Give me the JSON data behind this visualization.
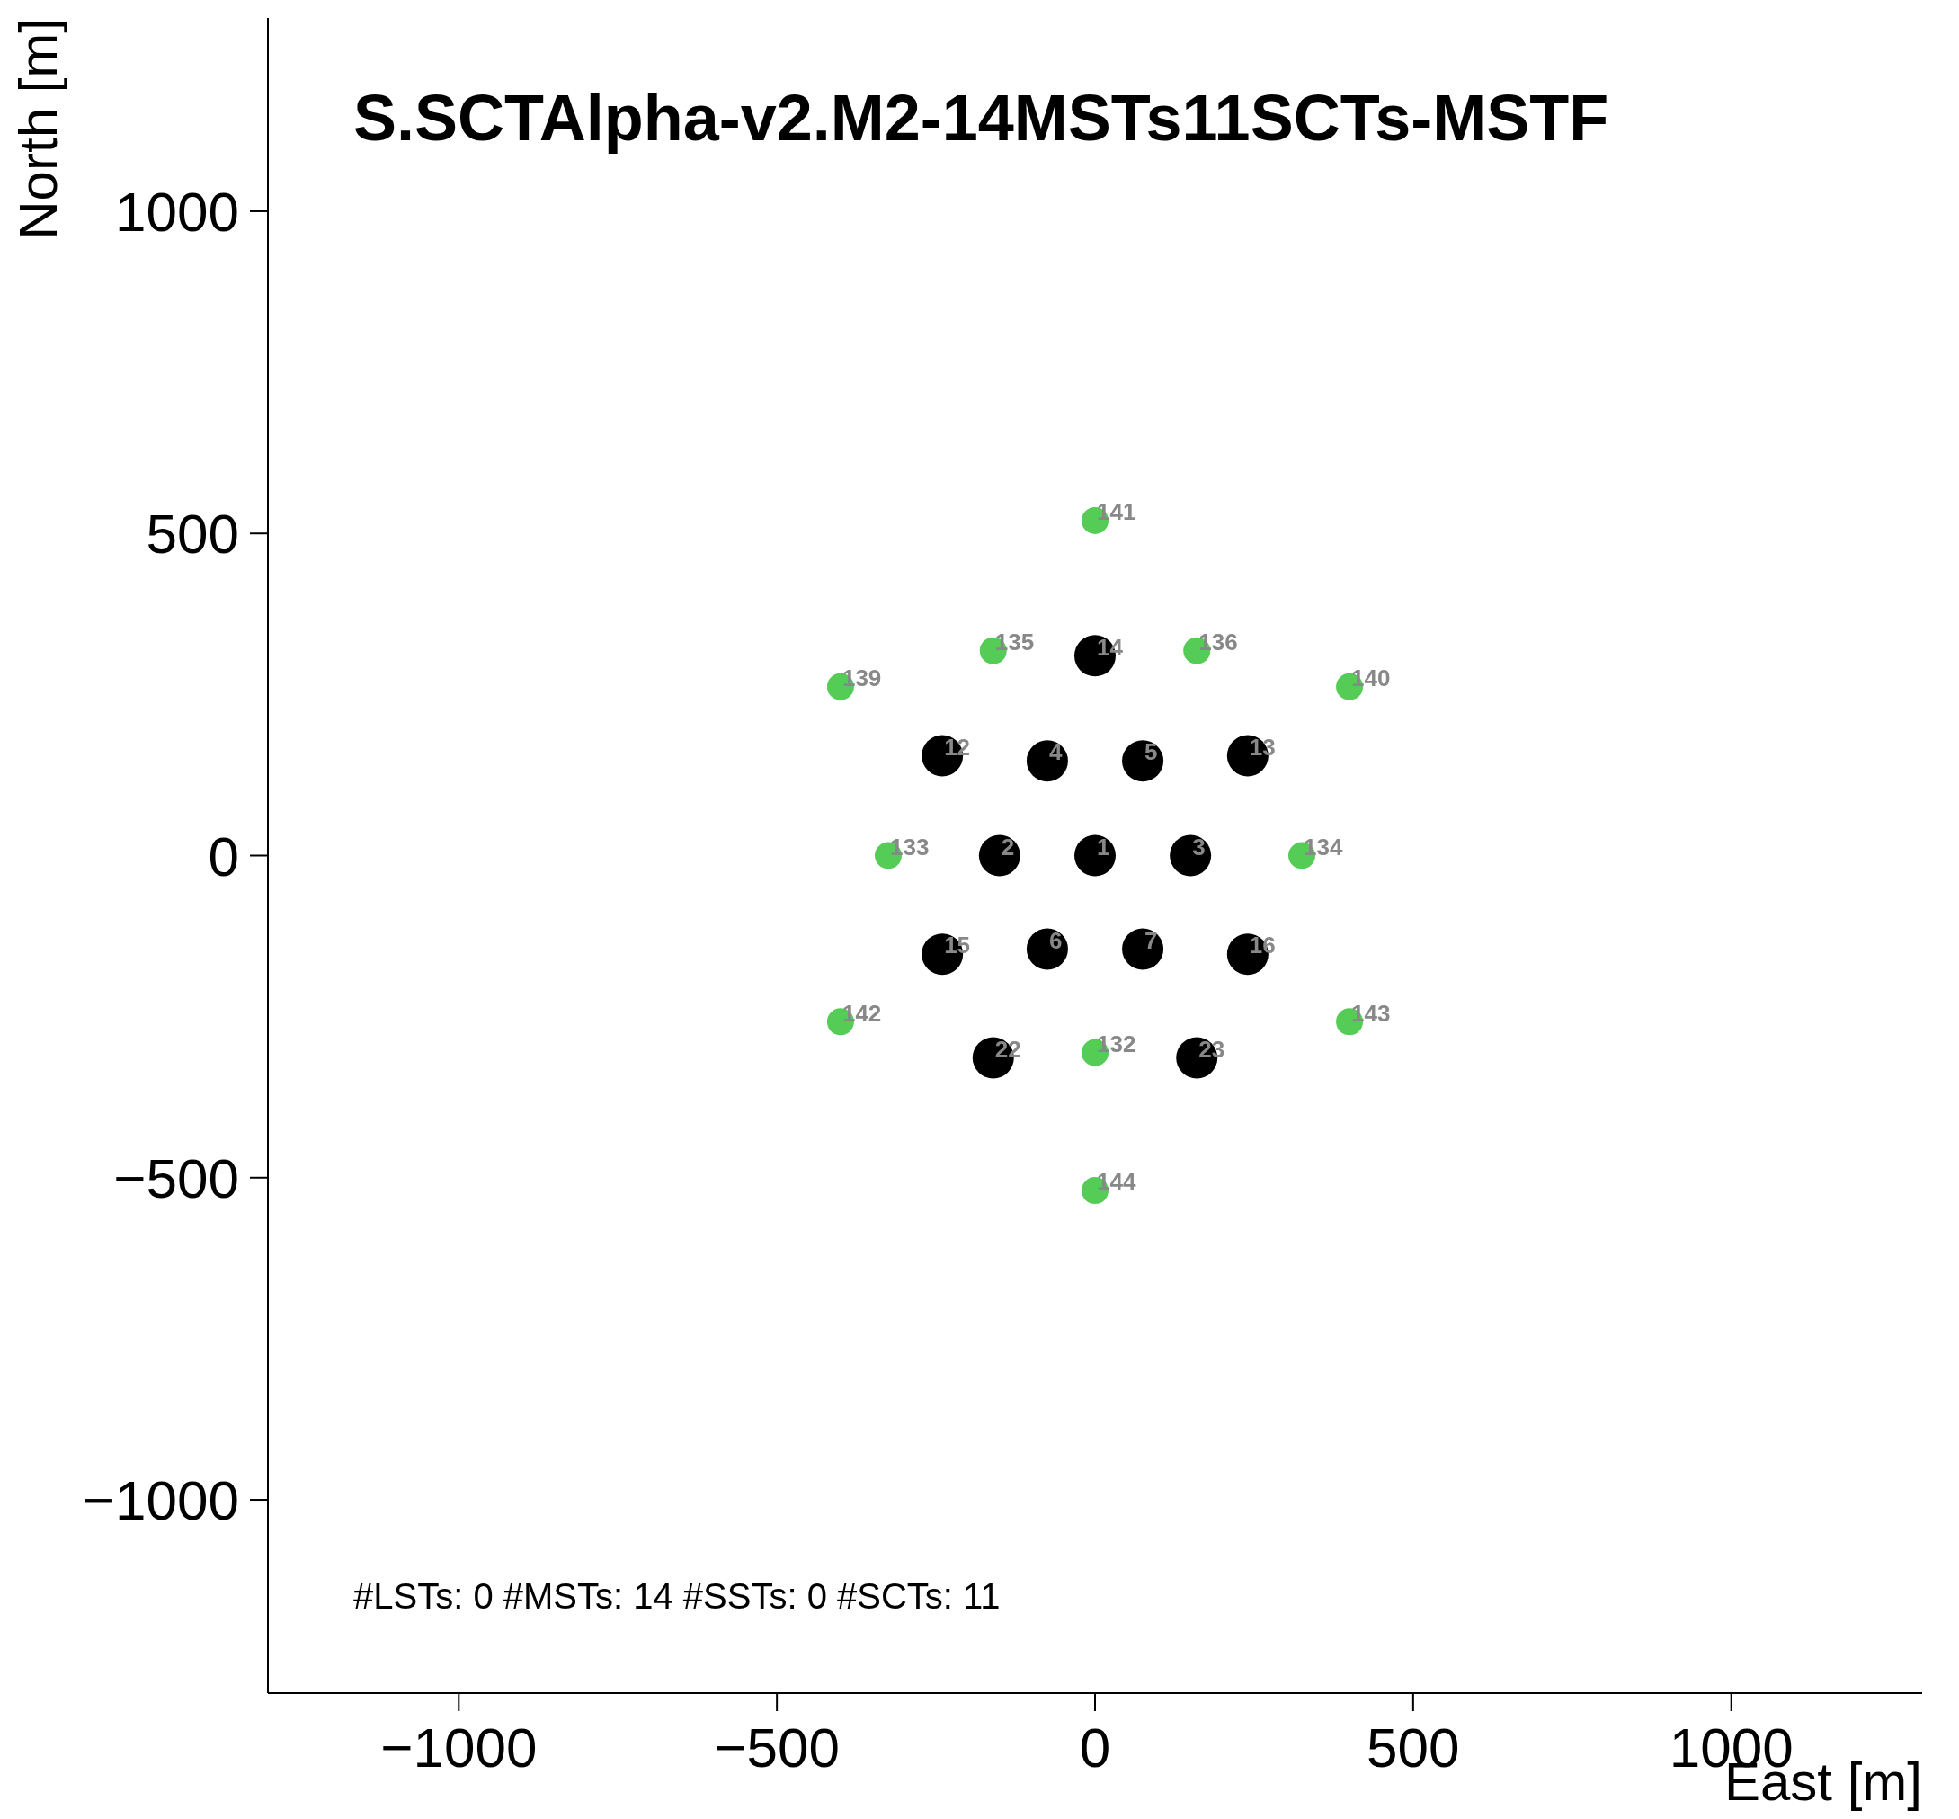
{
  "chart_data": {
    "type": "scatter",
    "title": "S.SCTAlpha-v2.M2-14MSTs11SCTs-MSTF",
    "xlabel": "East [m]",
    "ylabel": "North [m]",
    "xlim": [
      -1300,
      1300
    ],
    "ylim": [
      -1300,
      1300
    ],
    "xticks": [
      -1000,
      -500,
      0,
      500,
      1000
    ],
    "yticks": [
      -1000,
      -500,
      0,
      500,
      1000
    ],
    "grid": false,
    "legend": false,
    "marker": "circle",
    "series": [
      {
        "color": "#000000",
        "x": [
          0,
          -150,
          150,
          -75,
          75,
          -75,
          75,
          -240,
          240,
          0,
          -240,
          240,
          -160,
          160
        ],
        "values": [
          0,
          0,
          0,
          147,
          147,
          -145,
          -145,
          155,
          155,
          310,
          -153,
          -153,
          -314,
          -314
        ]
      },
      {
        "color": "#55cc55",
        "x": [
          0,
          -160,
          160,
          -400,
          400,
          -325,
          325,
          -400,
          400,
          0,
          0
        ],
        "values": [
          520,
          318,
          318,
          262,
          262,
          0,
          0,
          -258,
          -258,
          -306,
          -520
        ]
      }
    ],
    "annotations": [
      {
        "text": "1",
        "x": 0,
        "y": 0
      },
      {
        "text": "2",
        "x": -150,
        "y": 0
      },
      {
        "text": "3",
        "x": 150,
        "y": 0
      },
      {
        "text": "4",
        "x": -75,
        "y": 147
      },
      {
        "text": "5",
        "x": 75,
        "y": 147
      },
      {
        "text": "6",
        "x": -75,
        "y": -145
      },
      {
        "text": "7",
        "x": 75,
        "y": -145
      },
      {
        "text": "12",
        "x": -240,
        "y": 155
      },
      {
        "text": "13",
        "x": 240,
        "y": 155
      },
      {
        "text": "14",
        "x": 0,
        "y": 310
      },
      {
        "text": "15",
        "x": -240,
        "y": -153
      },
      {
        "text": "16",
        "x": 240,
        "y": -153
      },
      {
        "text": "22",
        "x": -160,
        "y": -314
      },
      {
        "text": "23",
        "x": 160,
        "y": -314
      },
      {
        "text": "141",
        "x": 0,
        "y": 520
      },
      {
        "text": "135",
        "x": -160,
        "y": 318
      },
      {
        "text": "136",
        "x": 160,
        "y": 318
      },
      {
        "text": "139",
        "x": -400,
        "y": 262
      },
      {
        "text": "140",
        "x": 400,
        "y": 262
      },
      {
        "text": "133",
        "x": -325,
        "y": 0
      },
      {
        "text": "134",
        "x": 325,
        "y": 0
      },
      {
        "text": "142",
        "x": -400,
        "y": -258
      },
      {
        "text": "143",
        "x": 400,
        "y": -258
      },
      {
        "text": "132",
        "x": 0,
        "y": -306
      },
      {
        "text": "144",
        "x": 0,
        "y": -520
      },
      "#LSTs: 0 #MSTs: 14 #SSTs: 0 #SCTs: 11"
    ]
  }
}
